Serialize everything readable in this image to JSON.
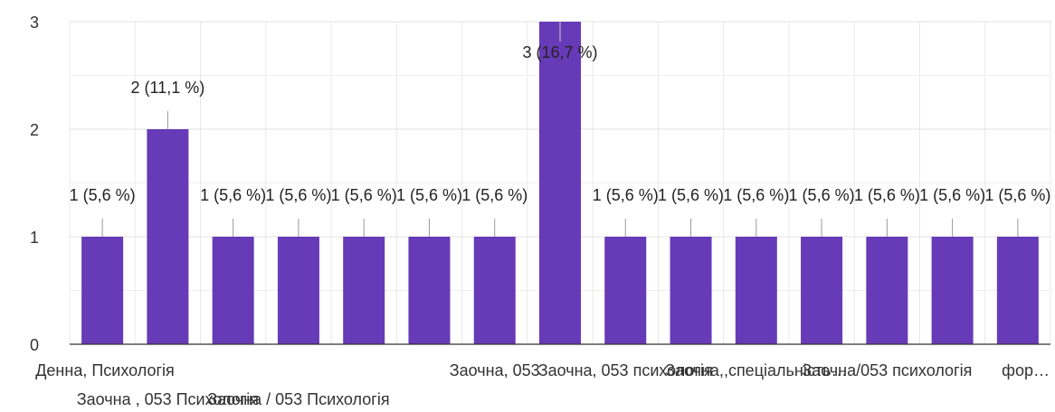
{
  "chart_data": {
    "type": "bar",
    "title": "",
    "xlabel": "",
    "ylabel": "",
    "ylim": [
      0,
      3
    ],
    "yticks": [
      "0",
      "1",
      "2",
      "3"
    ],
    "grid": true,
    "color": "#673ab7",
    "categories": [
      "Денна, Психологія",
      "Заочна , 053 Психологія",
      "",
      "Заочна / 053 Психологія",
      "",
      "",
      "Заочна, 053",
      "",
      "Заочна, 053 психологія",
      "",
      "Заочна,,спеціальність…",
      "",
      "Заочна/053 психологія",
      "",
      "фор…"
    ],
    "values": [
      1,
      2,
      1,
      1,
      1,
      1,
      1,
      3,
      1,
      1,
      1,
      1,
      1,
      1,
      1
    ],
    "labels": [
      "1 (5,6 %)",
      "2 (11,1 %)",
      "1 (5,6 %)",
      "1 (5,6 %)",
      "1 (5,6 %)",
      "1 (5,6 %)",
      "1 (5,6 %)",
      "3 (16,7 %)",
      "1 (5,6 %)",
      "1 (5,6 %)",
      "1 (5,6 %)",
      "1 (5,6 %)",
      "1 (5,6 %)",
      "1 (5,6 %)",
      "1 (5,6 %)"
    ]
  }
}
